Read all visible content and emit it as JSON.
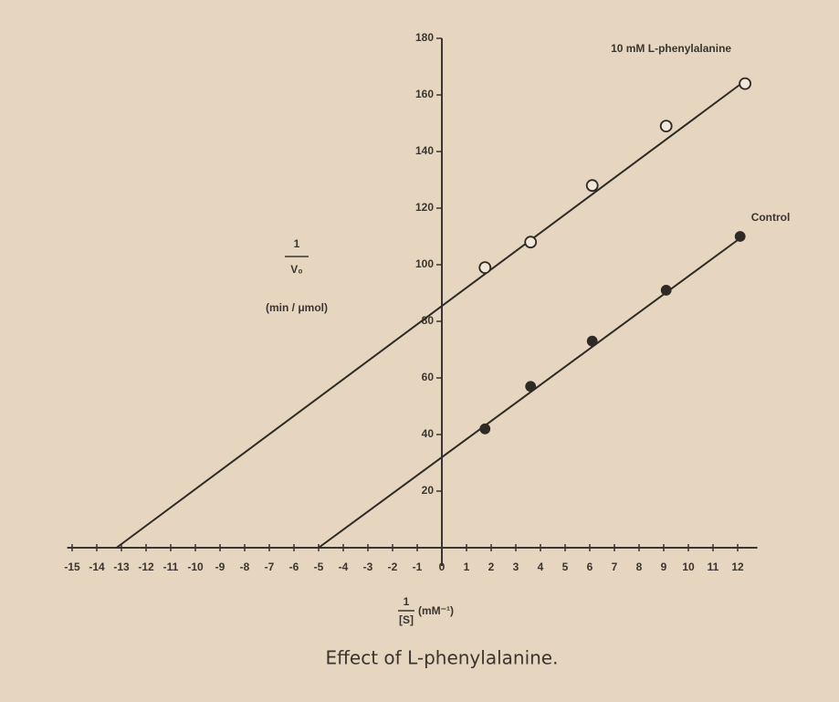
{
  "chart_data": {
    "type": "scatter",
    "caption": "Effect of L-phenylalanine.",
    "y_label": {
      "numerator": "1",
      "denominator": "V₀",
      "units": "(min / μmol)"
    },
    "x_label": {
      "numerator": "1",
      "denominator": "[S]",
      "units": "(mM⁻¹)"
    },
    "xlim": [
      -15.2,
      12.8
    ],
    "ylim": [
      0,
      180
    ],
    "xticks": [
      -15,
      -14,
      -13,
      -12,
      -11,
      -10,
      -9,
      -8,
      -7,
      -6,
      -5,
      -4,
      -3,
      -2,
      -1,
      0,
      1,
      2,
      3,
      4,
      5,
      6,
      7,
      8,
      9,
      10,
      11,
      12
    ],
    "yticks": [
      20,
      40,
      60,
      80,
      100,
      120,
      140,
      160,
      180
    ],
    "series": [
      {
        "name": "10 mM L-phenylalanine",
        "color": "#2e2a26",
        "marker": "open",
        "x": [
          1.75,
          3.6,
          6.1,
          9.1,
          12.3
        ],
        "values": [
          99,
          108,
          128,
          149,
          164
        ],
        "fit": {
          "x": [
            -13.2,
            12.3
          ],
          "y": [
            0,
            165
          ]
        }
      },
      {
        "name": "Control",
        "color": "#2e2a26",
        "marker": "filled",
        "x": [
          1.75,
          3.6,
          6.1,
          9.1,
          12.1
        ],
        "values": [
          42,
          57,
          73,
          91,
          110
        ],
        "fit": {
          "x": [
            -5,
            12.2
          ],
          "y": [
            0,
            110
          ]
        }
      }
    ]
  }
}
